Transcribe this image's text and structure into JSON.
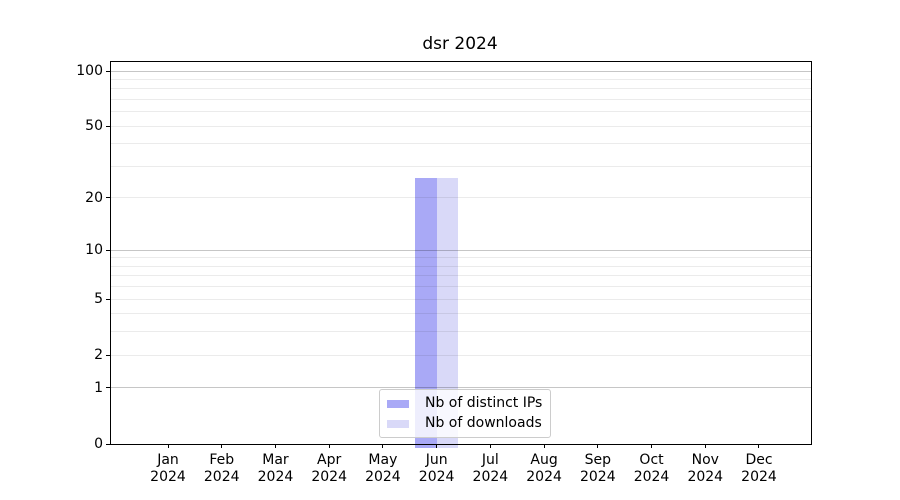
{
  "chart_data": {
    "type": "bar",
    "title": "dsr 2024",
    "categories": [
      "Jan",
      "Feb",
      "Mar",
      "Apr",
      "May",
      "Jun",
      "Jul",
      "Aug",
      "Sep",
      "Oct",
      "Nov",
      "Dec"
    ],
    "year_label": "2024",
    "series": [
      {
        "name": "Nb of distinct IPs",
        "color": "#a9a9f6",
        "values": [
          0,
          0,
          0,
          0,
          0,
          26,
          0,
          0,
          0,
          0,
          0,
          0
        ]
      },
      {
        "name": "Nb of downloads",
        "color": "#d9d9f8",
        "values": [
          0,
          0,
          0,
          0,
          0,
          26,
          0,
          0,
          0,
          0,
          0,
          0
        ]
      }
    ],
    "yscale": "log1p",
    "ylim": [
      0,
      112
    ],
    "yticks": [
      0,
      1,
      2,
      5,
      10,
      20,
      50,
      100
    ],
    "grid": true,
    "grid_major_values": [
      1,
      10,
      100
    ],
    "grid_minor_values": [
      2,
      3,
      4,
      5,
      6,
      7,
      8,
      9,
      20,
      30,
      40,
      50,
      60,
      70,
      80,
      90
    ],
    "legend_position": "lower center"
  },
  "colors": {
    "background": "#ffffff",
    "spine": "#000000",
    "grid_major": "#c6c6c6",
    "grid_minor": "#ebebeb",
    "legend_border": "#cccccc",
    "text": "#000000"
  }
}
